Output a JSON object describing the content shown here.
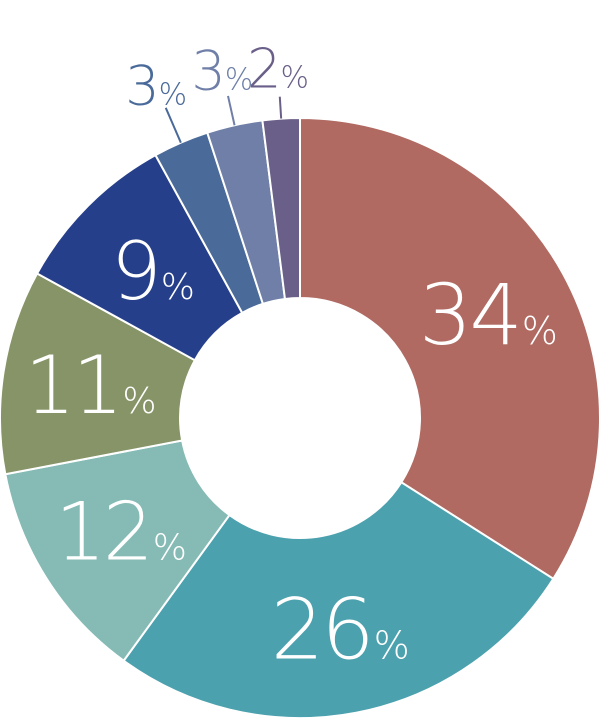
{
  "chart_data": {
    "type": "pie",
    "donut": true,
    "values": [
      34,
      26,
      12,
      11,
      9,
      3,
      3,
      2
    ],
    "value_labels": [
      "34",
      "26",
      "12",
      "11",
      "9",
      "3",
      "3",
      "2"
    ],
    "unit": "%",
    "colors": [
      "#b06a62",
      "#4ba1ae",
      "#85bbb4",
      "#869467",
      "#263f8a",
      "#4a6a9a",
      "#6f7fa8",
      "#6a5f88"
    ],
    "label_colors": [
      "#ffffff",
      "#ffffff",
      "#ffffff",
      "#ffffff",
      "#ffffff",
      "#4a6a9a",
      "#6f7fa8",
      "#6a5f88"
    ],
    "legend": "none"
  }
}
